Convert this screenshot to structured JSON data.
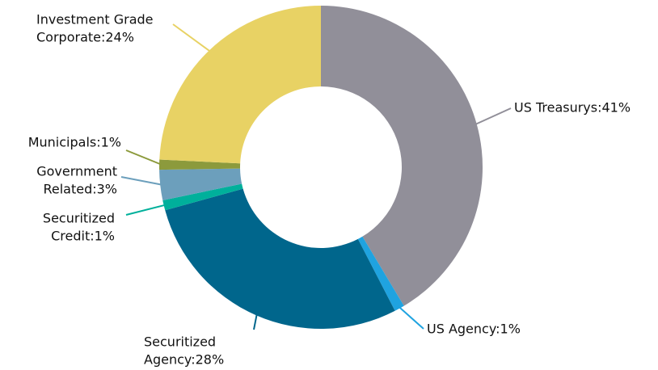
{
  "chart_data": {
    "type": "donut",
    "values": [
      41,
      1,
      28,
      1,
      3,
      1,
      24
    ],
    "value_labels": [
      [
        "US Treasurys:41%"
      ],
      [
        "US Agency:1%"
      ],
      [
        "Securitized",
        "Agency:28%"
      ],
      [
        "Securitized",
        "Credit:1%"
      ],
      [
        "Government",
        "Related:3%"
      ],
      [
        "Municipals:1%"
      ],
      [
        "Investment Grade",
        "Corporate:24%"
      ]
    ],
    "colors": [
      "#918f99",
      "#1fa3e0",
      "#00668c",
      "#00b09b",
      "#6c9fbc",
      "#8c9a3c",
      "#e8d264"
    ]
  }
}
